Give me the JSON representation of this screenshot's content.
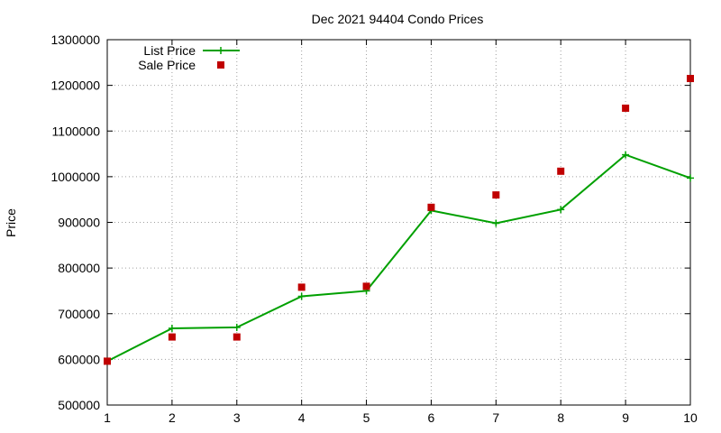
{
  "chart_data": {
    "type": "line",
    "title": "Dec 2021 94404 Condo Prices",
    "xlabel": "",
    "ylabel": "Price",
    "x": [
      1,
      2,
      3,
      4,
      5,
      6,
      7,
      8,
      9,
      10
    ],
    "xlim": [
      1,
      10
    ],
    "ylim": [
      500000,
      1300000
    ],
    "x_ticks": [
      "1",
      "2",
      "3",
      "4",
      "5",
      "6",
      "7",
      "8",
      "9",
      "10"
    ],
    "y_ticks": [
      "500000",
      "600000",
      "700000",
      "800000",
      "900000",
      "1000000",
      "1100000",
      "1200000",
      "1300000"
    ],
    "grid": true,
    "legend_position": "top-left",
    "series": [
      {
        "name": "List Price",
        "style": "line-with-plus-markers",
        "color": "#00a000",
        "values": [
          596000,
          668000,
          670000,
          738000,
          750000,
          926000,
          898000,
          928000,
          1048000,
          997000
        ]
      },
      {
        "name": "Sale Price",
        "style": "square-points",
        "color": "#c00000",
        "values": [
          596000,
          649000,
          649000,
          758000,
          760000,
          933000,
          960000,
          1012000,
          1150000,
          1215000
        ]
      }
    ]
  }
}
